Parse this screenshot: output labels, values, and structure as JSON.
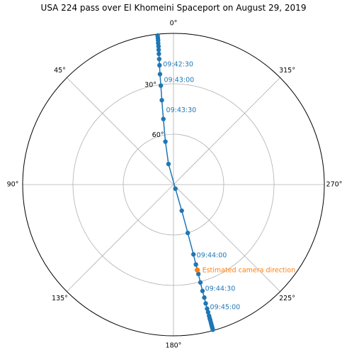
{
  "chart_data": {
    "type": "scatter",
    "projection": "polar",
    "title": "USA 224 pass over El Khomeini Spaceport on August 29, 2019",
    "theta_zero_location": "top",
    "theta_direction": "counterclockwise",
    "radial_axis": "elevation_deg",
    "radial_range": [
      90,
      0
    ],
    "angle_ticks": [
      "0°",
      "45°",
      "90°",
      "135°",
      "180°",
      "225°",
      "270°",
      "315°"
    ],
    "radial_ticks": [
      "30°",
      "60°"
    ],
    "grid": true,
    "series": [
      {
        "color": "#1f77b4",
        "marker": "circle",
        "line": true,
        "points": [
          {
            "az": 6.1,
            "el": 0.8
          },
          {
            "az": 6.1,
            "el": 2.2
          },
          {
            "az": 6.1,
            "el": 3.6
          },
          {
            "az": 6.2,
            "el": 5.3
          },
          {
            "az": 6.2,
            "el": 7.2
          },
          {
            "az": 6.3,
            "el": 9.3
          },
          {
            "az": 6.4,
            "el": 11.7
          },
          {
            "az": 6.5,
            "el": 14.8
          },
          {
            "az": 6.7,
            "el": 18.5
          },
          {
            "az": 7.0,
            "el": 23.8
          },
          {
            "az": 7.3,
            "el": 30.6
          },
          {
            "az": 7.9,
            "el": 39.3
          },
          {
            "az": 8.8,
            "el": 50.5
          },
          {
            "az": 10.7,
            "el": 64.0
          },
          {
            "az": 13.7,
            "el": 77.4
          },
          {
            "az": 205.1,
            "el": 87.3
          },
          {
            "az": 197.6,
            "el": 73.7
          },
          {
            "az": 196.5,
            "el": 60.0
          },
          {
            "az": 196.0,
            "el": 46.8
          },
          {
            "az": 195.7,
            "el": 40.6
          },
          {
            "az": 195.6,
            "el": 34.8
          },
          {
            "az": 195.4,
            "el": 29.6
          },
          {
            "az": 195.3,
            "el": 24.4
          },
          {
            "az": 195.3,
            "el": 20.3
          },
          {
            "az": 195.2,
            "el": 16.7
          },
          {
            "az": 195.2,
            "el": 13.5
          },
          {
            "az": 195.2,
            "el": 11.3
          },
          {
            "az": 195.2,
            "el": 9.1
          },
          {
            "az": 195.2,
            "el": 7.6
          },
          {
            "az": 195.2,
            "el": 6.3
          },
          {
            "az": 195.2,
            "el": 4.8
          },
          {
            "az": 195.2,
            "el": 3.6
          },
          {
            "az": 195.2,
            "el": 2.6
          },
          {
            "az": 195.2,
            "el": 1.5
          },
          {
            "az": 195.2,
            "el": 0.5
          }
        ]
      }
    ],
    "time_annotations": [
      {
        "text": "09:42:30",
        "az": 6.6,
        "el": 17.4
      },
      {
        "text": "09:43:00",
        "az": 7.1,
        "el": 26.8
      },
      {
        "text": "09:43:30",
        "az": 8.3,
        "el": 44.8
      },
      {
        "text": "09:44:00",
        "az": 195.7,
        "el": 46.8
      },
      {
        "text": "09:44:30",
        "az": 195.2,
        "el": 26.2
      },
      {
        "text": "09:45:00",
        "az": 195.2,
        "el": 15.0
      }
    ],
    "highlight": {
      "label": "Estimated camera direction",
      "color": "#ff7f0e",
      "az": 195.6,
      "el": 37.2
    }
  }
}
